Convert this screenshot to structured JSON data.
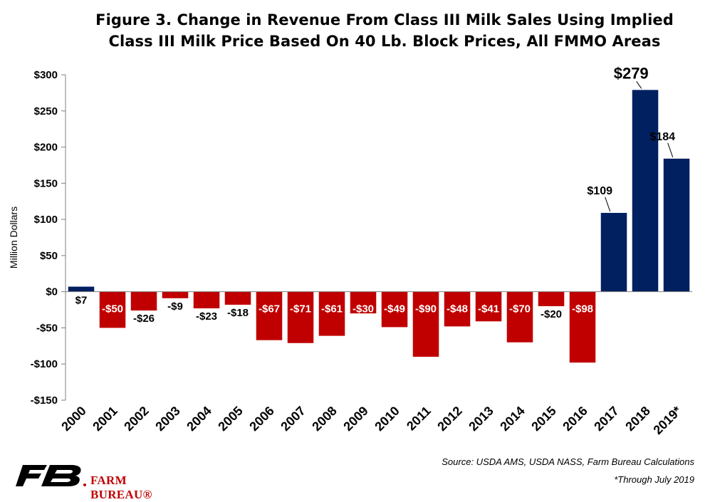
{
  "chart_data": {
    "type": "bar",
    "title": "Figure 3. Change in Revenue From Class III Milk Sales Using Implied Class III Milk Price Based On 40 Lb. Block Prices, All FMMO Areas",
    "title_lines": [
      "Figure 3. Change in Revenue From Class III Milk Sales Using Implied",
      "Class III Milk Price Based On 40 Lb. Block Prices, All FMMO Areas"
    ],
    "ylabel": "Million Dollars",
    "xlabel": "",
    "ylim": [
      -150,
      300
    ],
    "yticks": [
      300,
      250,
      200,
      150,
      100,
      50,
      0,
      -50,
      -100,
      -150
    ],
    "ytick_labels": [
      "$300",
      "$250",
      "$200",
      "$150",
      "$100",
      "$50",
      "$0",
      "-$50",
      "-$100",
      "-$150"
    ],
    "categories": [
      "2000",
      "2001",
      "2002",
      "2003",
      "2004",
      "2005",
      "2006",
      "2007",
      "2008",
      "2009",
      "2010",
      "2011",
      "2012",
      "2013",
      "2014",
      "2015",
      "2016",
      "2017",
      "2018",
      "2019*"
    ],
    "values": [
      7,
      -50,
      -26,
      -9,
      -23,
      -18,
      -67,
      -71,
      -61,
      -30,
      -49,
      -90,
      -48,
      -41,
      -70,
      -20,
      -98,
      109,
      279,
      184
    ],
    "data_labels": [
      "$7",
      "-$50",
      "-$26",
      "-$9",
      "-$23",
      "-$18",
      "-$67",
      "-$71",
      "-$61",
      "-$30",
      "-$49",
      "-$90",
      "-$48",
      "-$41",
      "-$70",
      "-$20",
      "-$98",
      "$109",
      "$279",
      "$184"
    ],
    "colors": {
      "positive": "#002060",
      "negative": "#c00000"
    },
    "grid": false,
    "legend": "none"
  },
  "source_note": "Source: USDA AMS, USDA NASS, Farm Bureau Calculations",
  "footnote": "*Through July 2019",
  "brand": {
    "name": "FARM BUREAU®",
    "logo": "farm-bureau-logo",
    "color": "#c00000"
  }
}
